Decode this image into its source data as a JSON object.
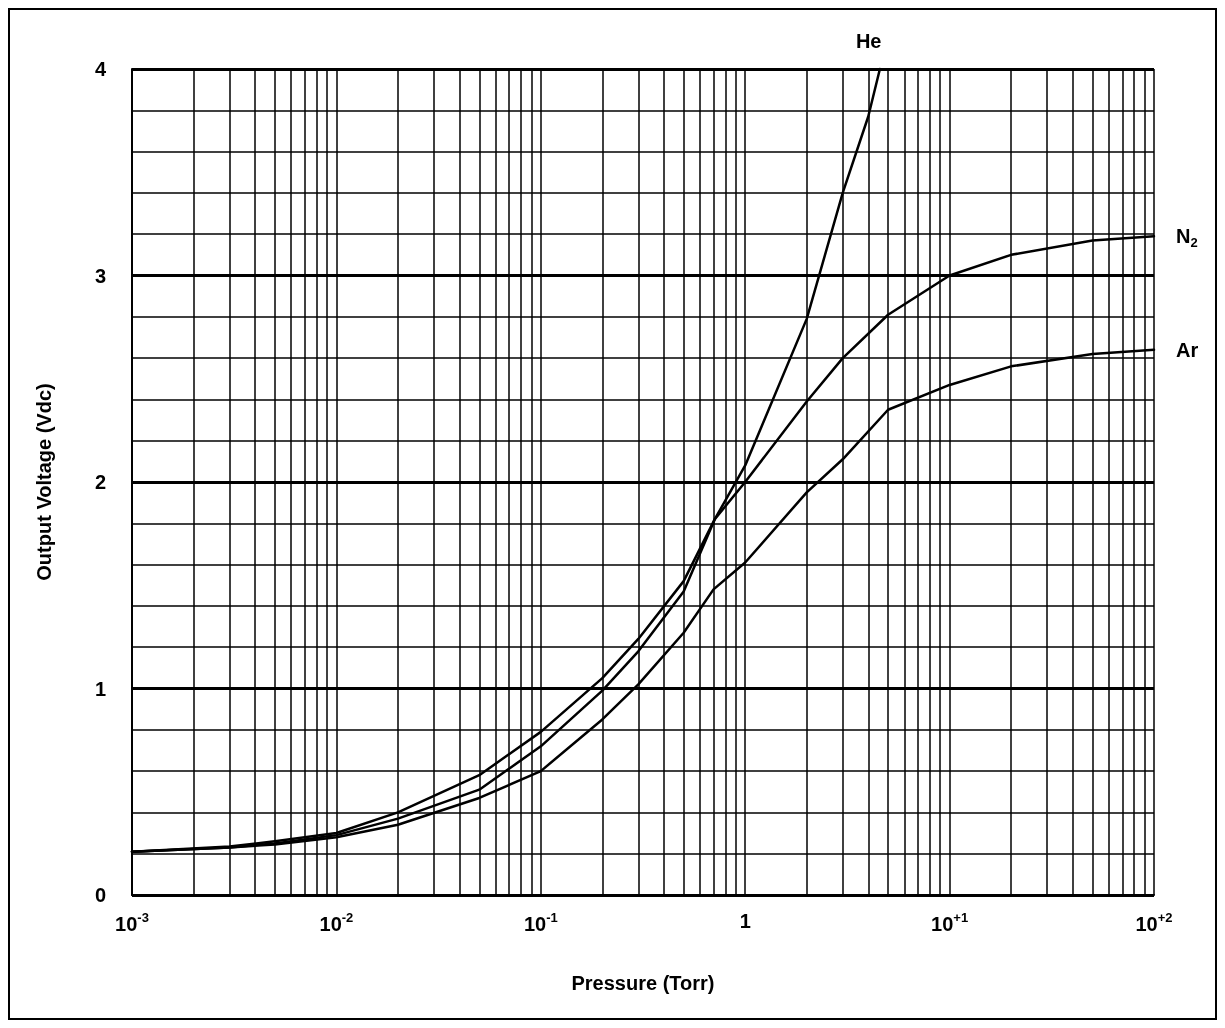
{
  "chart_data": {
    "type": "line",
    "xlabel": "Pressure (Torr)",
    "ylabel": "Output Voltage (Vdc)",
    "log": "x",
    "grid": true,
    "legend": false,
    "marker": "none",
    "line_style": "solid",
    "xlim": [
      0.001,
      100
    ],
    "ylim": [
      0,
      4
    ],
    "xticks": [
      {
        "value": 0.001,
        "label": "10$^{-3}$"
      },
      {
        "value": 0.002,
        "label": null
      },
      {
        "value": 0.003,
        "label": null
      },
      {
        "value": 0.004,
        "label": null
      },
      {
        "value": 0.005,
        "label": null
      },
      {
        "value": 0.006,
        "label": null
      },
      {
        "value": 0.007,
        "label": null
      },
      {
        "value": 0.008,
        "label": null
      },
      {
        "value": 0.009,
        "label": null
      },
      {
        "value": 0.01,
        "label": "10$^{-2}$"
      },
      {
        "value": 0.02,
        "label": null
      },
      {
        "value": 0.03,
        "label": null
      },
      {
        "value": 0.04,
        "label": null
      },
      {
        "value": 0.05,
        "label": null
      },
      {
        "value": 0.06,
        "label": null
      },
      {
        "value": 0.07,
        "label": null
      },
      {
        "value": 0.08,
        "label": null
      },
      {
        "value": 0.09,
        "label": null
      },
      {
        "value": 0.1,
        "label": "10$^{-1}$"
      },
      {
        "value": 0.2,
        "label": null
      },
      {
        "value": 0.3,
        "label": null
      },
      {
        "value": 0.4,
        "label": null
      },
      {
        "value": 0.5,
        "label": null
      },
      {
        "value": 0.6,
        "label": null
      },
      {
        "value": 0.7,
        "label": null
      },
      {
        "value": 0.8,
        "label": null
      },
      {
        "value": 0.9,
        "label": null
      },
      1,
      {
        "value": 2,
        "label": null
      },
      {
        "value": 3,
        "label": null
      },
      {
        "value": 4,
        "label": null
      },
      {
        "value": 5,
        "label": null
      },
      {
        "value": 6,
        "label": null
      },
      {
        "value": 7,
        "label": null
      },
      {
        "value": 8,
        "label": null
      },
      {
        "value": 9,
        "label": null
      },
      {
        "value": 10,
        "label": "10$^{+1}$"
      },
      {
        "value": 20,
        "label": null
      },
      {
        "value": 30,
        "label": null
      },
      {
        "value": 40,
        "label": null
      },
      {
        "value": 50,
        "label": null
      },
      {
        "value": 60,
        "label": null
      },
      {
        "value": 70,
        "label": null
      },
      {
        "value": 80,
        "label": null
      },
      {
        "value": 90,
        "label": null
      },
      {
        "value": 100,
        "label": "10$^{+2}$"
      }
    ],
    "yticks": [
      0,
      {
        "value": 0.2,
        "label": null
      },
      {
        "value": 0.4,
        "label": null
      },
      {
        "value": 0.6,
        "label": null
      },
      {
        "value": 0.8,
        "label": null
      },
      1,
      {
        "value": 1.2,
        "label": null
      },
      {
        "value": 1.4,
        "label": null
      },
      {
        "value": 1.6,
        "label": null
      },
      {
        "value": 1.8,
        "label": null
      },
      2,
      {
        "value": 2.2,
        "label": null
      },
      {
        "value": 2.4,
        "label": null
      },
      {
        "value": 2.6,
        "label": null
      },
      {
        "value": 2.8,
        "label": null
      },
      3,
      {
        "value": 3.2,
        "label": null
      },
      {
        "value": 3.4,
        "label": null
      },
      {
        "value": 3.6,
        "label": null
      },
      {
        "value": 3.8,
        "label": null
      },
      4
    ],
    "series": [
      {
        "name": "He",
        "color": "#000000",
        "x": [
          0.001,
          0.003,
          0.005,
          0.01,
          0.02,
          0.05,
          0.1,
          0.2,
          0.3,
          0.5,
          0.71,
          1,
          2,
          3,
          4,
          4.56
        ],
        "values": [
          0.21,
          0.23,
          0.25,
          0.29,
          0.37,
          0.51,
          0.72,
          0.99,
          1.18,
          1.47,
          1.82,
          2.08,
          2.79,
          3.4,
          3.77,
          4
        ]
      },
      {
        "name": "N$_{2}$",
        "color": "#000000",
        "x": [
          0.001,
          0.003,
          0.005,
          0.01,
          0.02,
          0.05,
          0.1,
          0.2,
          0.3,
          0.5,
          0.71,
          1,
          2,
          3,
          5,
          10,
          20,
          50,
          100
        ],
        "values": [
          0.21,
          0.235,
          0.26,
          0.3,
          0.4,
          0.58,
          0.79,
          1.05,
          1.24,
          1.52,
          1.82,
          2.0,
          2.39,
          2.6,
          2.81,
          3.0,
          3.1,
          3.17,
          3.19
        ]
      },
      {
        "name": "Ar",
        "color": "#000000",
        "x": [
          0.001,
          0.003,
          0.005,
          0.01,
          0.02,
          0.05,
          0.1,
          0.2,
          0.3,
          0.5,
          0.7,
          1,
          2,
          3,
          5,
          10,
          20,
          50,
          100
        ],
        "values": [
          0.21,
          0.23,
          0.245,
          0.28,
          0.34,
          0.47,
          0.6,
          0.85,
          1.02,
          1.27,
          1.48,
          1.61,
          1.95,
          2.11,
          2.35,
          2.47,
          2.56,
          2.62,
          2.64
        ]
      }
    ]
  }
}
